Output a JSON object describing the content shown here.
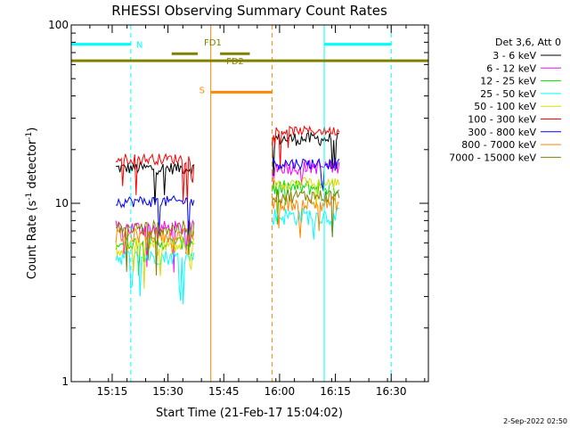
{
  "chart_data": {
    "type": "line",
    "title": "RHESSI Observing Summary Count Rates",
    "xlabel": "Start Time (21-Feb-17 15:04:02)",
    "ylabel_main": "Count Rate (s",
    "ylabel_sup1": "-1",
    "ylabel_mid": " detector",
    "ylabel_sup2": "-1",
    "ylabel_end": ")",
    "yscale": "log",
    "ylim": [
      1,
      100
    ],
    "xlim_minutes": [
      0,
      96
    ],
    "x_ticks": [
      {
        "label": "15:15",
        "minute": 11
      },
      {
        "label": "15:30",
        "minute": 26
      },
      {
        "label": "15:45",
        "minute": 41
      },
      {
        "label": "16:00",
        "minute": 56
      },
      {
        "label": "16:15",
        "minute": 71
      },
      {
        "label": "16:30",
        "minute": 86
      }
    ],
    "y_ticks": [
      {
        "label": "1",
        "value": 1
      },
      {
        "label": "10",
        "value": 10
      },
      {
        "label": "100",
        "value": 100
      }
    ],
    "legend_title": "Det 3,6, Att 0",
    "series": [
      {
        "name": "3 - 6 keV",
        "color": "#000000",
        "seg1": [
          14.5,
          17.0
        ],
        "seg2": [
          21.0,
          25.0
        ]
      },
      {
        "name": "6 - 12 keV",
        "color": "#ff00ff",
        "seg1": [
          6.5,
          8.0
        ],
        "seg2": [
          14.5,
          17.5
        ]
      },
      {
        "name": "12 - 25 keV",
        "color": "#00dd00",
        "seg1": [
          5.5,
          6.5
        ],
        "seg2": [
          11.0,
          13.5
        ]
      },
      {
        "name": "25 - 50 keV",
        "color": "#00ffff",
        "seg1": [
          4.5,
          5.5
        ],
        "seg2": [
          7.5,
          9.5
        ]
      },
      {
        "name": "50 - 100 keV",
        "color": "#dddd00",
        "seg1": [
          5.0,
          6.5
        ],
        "seg2": [
          12.0,
          14.0
        ]
      },
      {
        "name": "100 - 300 keV",
        "color": "#ff0000",
        "seg1": [
          16.5,
          19.0
        ],
        "seg2": [
          24.0,
          27.0
        ]
      },
      {
        "name": "300 - 800 keV",
        "color": "#0000ff",
        "seg1": [
          9.5,
          11.0
        ],
        "seg2": [
          15.5,
          18.0
        ]
      },
      {
        "name": "800 - 7000 keV",
        "color": "#ff8800",
        "seg1": [
          6.0,
          7.2
        ],
        "seg2": [
          9.0,
          11.0
        ]
      },
      {
        "name": "7000 - 15000 keV",
        "color": "#808000",
        "seg1": [
          6.5,
          8.0
        ],
        "seg2": [
          10.0,
          12.0
        ]
      }
    ],
    "data_segments_minutes": [
      [
        12,
        33
      ],
      [
        54,
        72
      ]
    ],
    "flags": [
      {
        "label": "N",
        "color": "#00ffff",
        "ranges": [
          [
            0,
            16
          ],
          [
            68,
            86
          ]
        ],
        "value": 78
      },
      {
        "label": "S",
        "color": "#ff8800",
        "ranges": [
          [
            37.5,
            54
          ]
        ],
        "value": 42
      },
      {
        "label": "FD1",
        "color": "#808000",
        "ranges": [
          [
            27,
            34
          ],
          [
            40,
            48
          ]
        ],
        "value": 69
      },
      {
        "label": "FD2",
        "color": "#808000",
        "ranges": [
          [
            0,
            96
          ]
        ],
        "value": 63
      }
    ],
    "vertical_lines": [
      {
        "minute": 16,
        "color": "#00ffff",
        "style": "dashed"
      },
      {
        "minute": 37.5,
        "color": "#ff8800",
        "style": "solid"
      },
      {
        "minute": 54,
        "color": "#ff8800",
        "style": "dashed"
      },
      {
        "minute": 68,
        "color": "#00ffff",
        "style": "solid"
      },
      {
        "minute": 86,
        "color": "#00ffff",
        "style": "dashed"
      }
    ],
    "footer_date": "2-Sep-2022 02:50"
  }
}
